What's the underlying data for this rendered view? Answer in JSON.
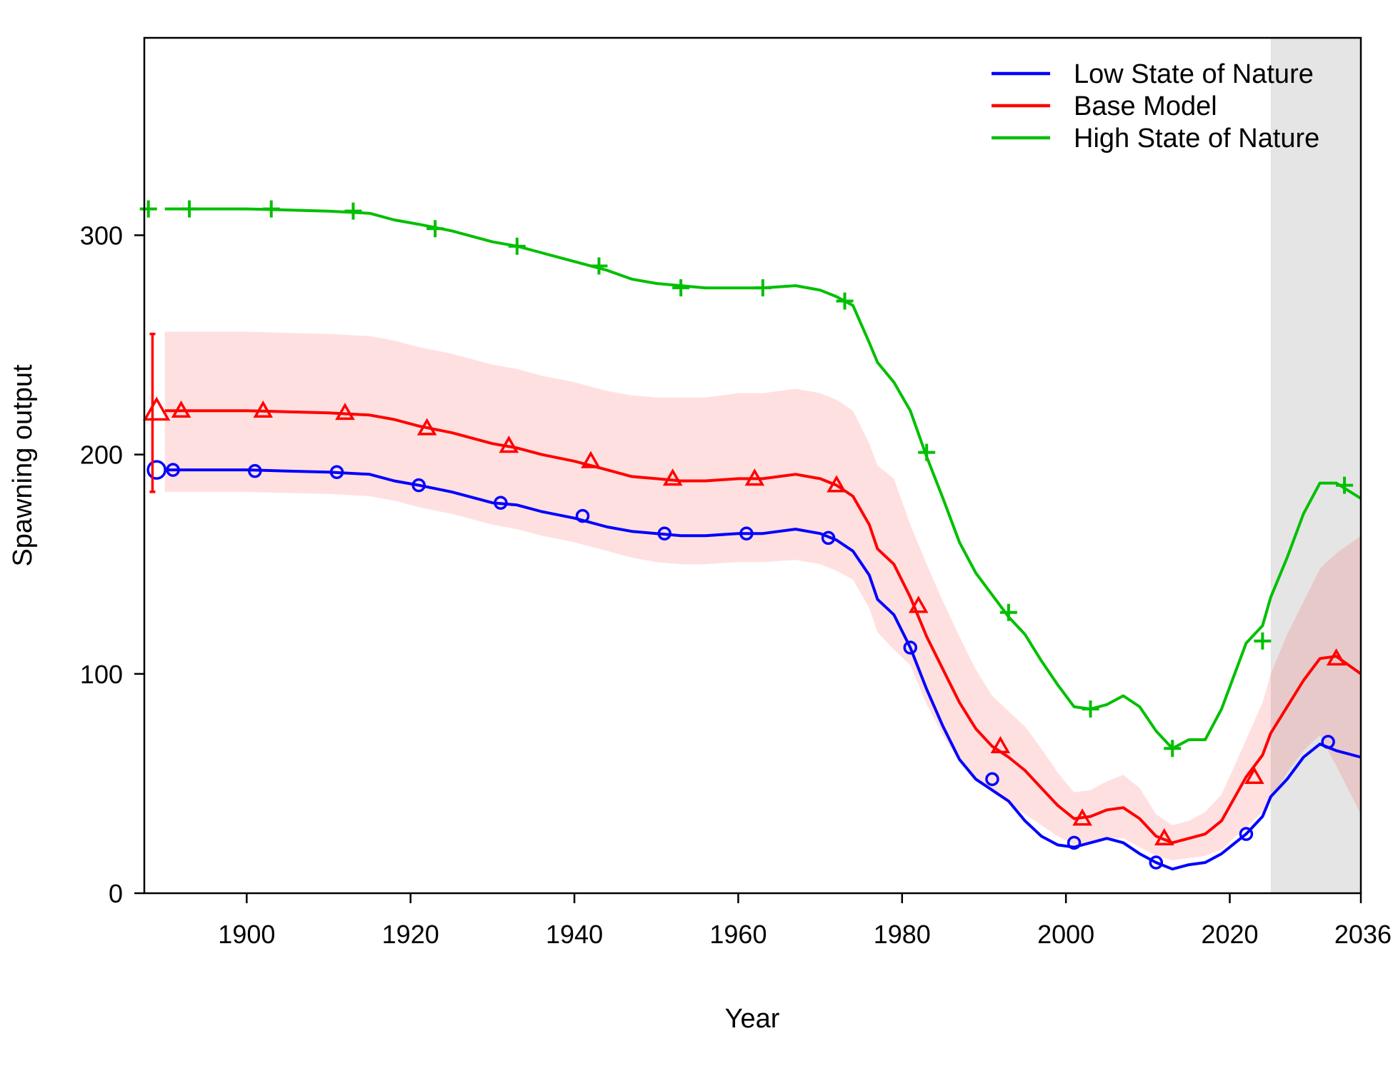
{
  "chart_data": {
    "type": "line",
    "xlabel": "Year",
    "ylabel": "Spawning output",
    "xlim": [
      1887.5,
      2036
    ],
    "ylim": [
      0,
      390
    ],
    "x_ticks": [
      1900,
      1920,
      1940,
      1960,
      1980,
      2000,
      2020,
      2036
    ],
    "y_ticks": [
      0,
      100,
      200,
      300
    ],
    "forecast_region": {
      "from": 2025,
      "to": 2036,
      "color": "#e5e5e5"
    },
    "grid": false,
    "legend_position": "top-right",
    "base_initial_interval": {
      "x": 1888.5,
      "low": 183,
      "high": 255,
      "value": 220
    },
    "series": [
      {
        "name": "Low State of Nature",
        "color": "#0000ff",
        "marker": "circle",
        "x": [
          1890,
          1895,
          1900,
          1905,
          1910,
          1915,
          1918,
          1921,
          1925,
          1930,
          1933,
          1936,
          1940,
          1944,
          1947,
          1950,
          1953,
          1956,
          1960,
          1963,
          1967,
          1970,
          1972,
          1974,
          1976,
          1977,
          1979,
          1981,
          1983,
          1985,
          1987,
          1989,
          1991,
          1993,
          1995,
          1997,
          1999,
          2001,
          2003,
          2005,
          2007,
          2009,
          2011,
          2013,
          2015,
          2017,
          2019,
          2022,
          2024,
          2025,
          2027,
          2029,
          2031,
          2033,
          2036
        ],
        "y": [
          193,
          193,
          193,
          192.5,
          192,
          191,
          188,
          186,
          183,
          178,
          177,
          174,
          171,
          167,
          165,
          164,
          163,
          163,
          164,
          164,
          166,
          164,
          161,
          156,
          145,
          134,
          127,
          112,
          93,
          76,
          61,
          52,
          47,
          42,
          33,
          26,
          22,
          21,
          23,
          25,
          23,
          18,
          14,
          11,
          13,
          14,
          18,
          27,
          35,
          44,
          52,
          62,
          68,
          65,
          62
        ],
        "marker_x": [
          1889,
          1891,
          1901,
          1911,
          1921,
          1931,
          1941,
          1951,
          1961,
          1971,
          1981,
          1991,
          2001,
          2011,
          2022,
          2032
        ],
        "marker_y": [
          193,
          193,
          192.5,
          192,
          186,
          178,
          172,
          164,
          164,
          162,
          112,
          52,
          23,
          14,
          27,
          69
        ]
      },
      {
        "name": "Base Model",
        "color": "#ff0000",
        "marker": "triangle",
        "x": [
          1890,
          1895,
          1900,
          1905,
          1910,
          1915,
          1918,
          1921,
          1925,
          1930,
          1933,
          1936,
          1940,
          1944,
          1947,
          1950,
          1953,
          1956,
          1960,
          1963,
          1967,
          1970,
          1972,
          1974,
          1976,
          1977,
          1979,
          1981,
          1983,
          1985,
          1987,
          1989,
          1991,
          1993,
          1995,
          1997,
          1999,
          2001,
          2003,
          2005,
          2007,
          2009,
          2011,
          2013,
          2015,
          2017,
          2019,
          2022,
          2024,
          2025,
          2027,
          2029,
          2031,
          2033,
          2036
        ],
        "y": [
          220,
          220,
          220,
          219.5,
          219,
          218,
          216,
          213,
          210,
          205,
          203,
          200,
          197,
          193,
          190,
          189,
          188,
          188,
          189,
          189,
          191,
          189,
          186,
          181,
          168,
          157,
          150,
          135,
          117,
          102,
          87,
          75,
          67,
          62,
          56,
          48,
          40,
          34,
          35,
          38,
          39,
          34,
          26,
          23,
          25,
          27,
          33,
          53,
          63,
          73,
          85,
          97,
          107,
          108,
          100
        ],
        "marker_x": [
          1889,
          1892,
          1902,
          1912,
          1922,
          1932,
          1942,
          1952,
          1962,
          1972,
          1982,
          1992,
          2002,
          2012,
          2023,
          2033
        ],
        "marker_y": [
          220,
          220,
          220,
          219,
          212,
          204,
          197,
          189,
          189,
          186,
          131,
          67,
          34,
          25,
          53,
          107
        ],
        "ci_low": [
          183,
          183,
          183,
          182.5,
          182,
          181,
          179,
          176,
          173,
          168,
          166,
          163,
          160,
          156,
          153,
          151,
          150,
          150,
          151,
          151,
          152,
          150,
          147,
          143,
          130,
          119,
          111,
          104,
          86,
          72,
          60,
          52,
          46,
          41,
          36,
          31,
          26,
          22,
          23,
          25,
          25,
          21,
          17,
          15,
          16,
          17,
          20,
          30,
          37,
          43,
          55,
          65,
          72,
          58,
          36
        ],
        "ci_high": [
          256,
          256,
          256,
          255.5,
          255,
          254,
          252,
          249,
          246,
          241,
          239,
          236,
          233,
          229,
          227,
          226,
          226,
          226,
          228,
          228,
          230,
          228,
          225,
          220,
          205,
          195,
          189,
          168,
          150,
          133,
          117,
          102,
          90,
          83,
          76,
          66,
          55,
          46,
          47,
          51,
          54,
          48,
          36,
          31,
          33,
          37,
          45,
          70,
          87,
          100,
          118,
          133,
          148,
          155,
          163
        ]
      },
      {
        "name": "High State of Nature",
        "color": "#00bf00",
        "marker": "plus",
        "x": [
          1890,
          1895,
          1900,
          1905,
          1910,
          1915,
          1918,
          1921,
          1925,
          1930,
          1933,
          1936,
          1940,
          1944,
          1947,
          1950,
          1953,
          1956,
          1960,
          1963,
          1967,
          1970,
          1972,
          1974,
          1976,
          1977,
          1979,
          1981,
          1983,
          1985,
          1987,
          1989,
          1991,
          1993,
          1995,
          1997,
          1999,
          2001,
          2003,
          2005,
          2007,
          2009,
          2011,
          2013,
          2015,
          2017,
          2019,
          2022,
          2024,
          2025,
          2027,
          2029,
          2031,
          2033,
          2036
        ],
        "y": [
          312,
          312,
          312,
          311.5,
          311,
          310,
          307,
          305,
          302,
          297,
          295,
          292,
          288,
          284,
          280,
          278,
          277,
          276,
          276,
          276,
          277,
          275,
          272,
          268,
          251,
          242,
          233,
          220,
          199,
          180,
          160,
          146,
          136,
          126,
          118,
          106,
          95,
          85,
          84,
          86,
          90,
          85,
          74,
          66,
          70,
          70,
          84,
          114,
          122,
          135,
          153,
          173,
          187,
          187,
          180
        ],
        "marker_x": [
          1888,
          1893,
          1903,
          1913,
          1923,
          1933,
          1943,
          1953,
          1963,
          1973,
          1983,
          1993,
          2003,
          2013,
          2024,
          2034
        ],
        "marker_y": [
          312,
          312,
          312,
          311,
          303,
          295,
          286,
          276,
          276,
          270,
          201,
          128,
          84,
          66,
          115,
          186
        ]
      }
    ]
  }
}
